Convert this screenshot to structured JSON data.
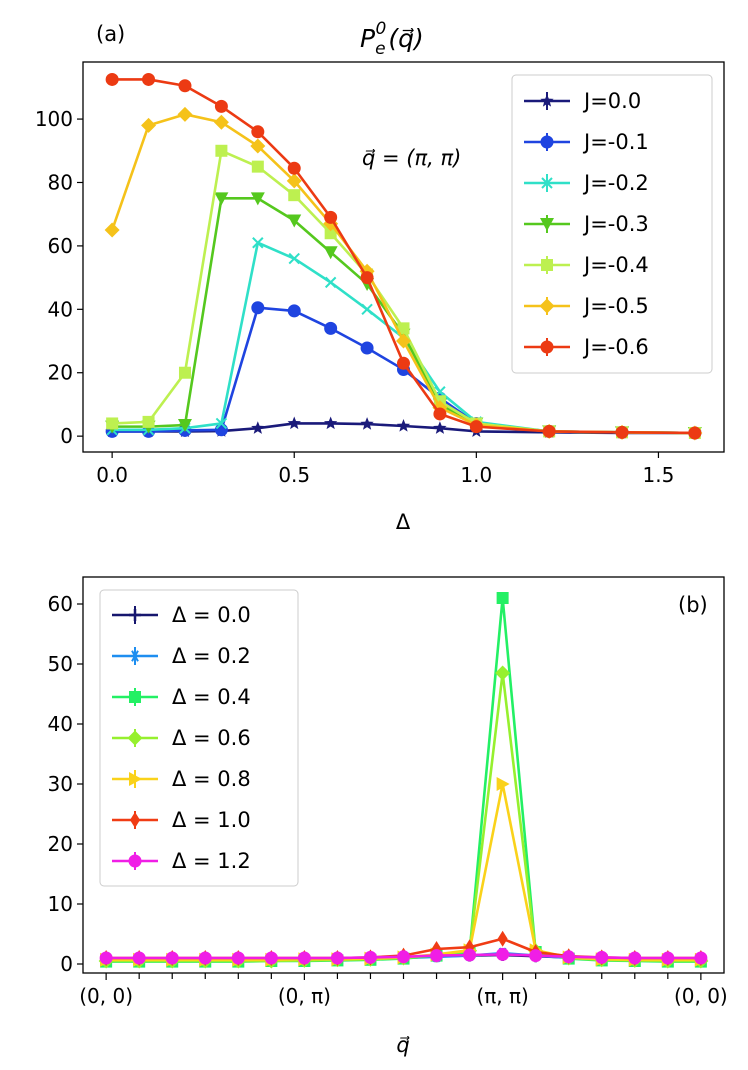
{
  "chart_data": [
    {
      "type": "line",
      "panel_label": "(a)",
      "title": "P_e^0(q)",
      "title_parts": {
        "base": "P",
        "sub": "e",
        "sup": "0",
        "arg": "(q⃗)"
      },
      "annotation": "q⃗ = (π, π)",
      "xlabel": "Δ",
      "ylabel": "",
      "xlim": [
        -0.08,
        1.68
      ],
      "ylim": [
        -5,
        118
      ],
      "xticks": [
        0.0,
        0.5,
        1.0,
        1.5
      ],
      "xtick_labels": [
        "0.0",
        "0.5",
        "1.0",
        "1.5"
      ],
      "yticks": [
        0,
        20,
        40,
        60,
        80,
        100
      ],
      "ytick_labels": [
        "0",
        "20",
        "40",
        "60",
        "80",
        "100"
      ],
      "grid": false,
      "legend_position": "top-right",
      "x": [
        0.0,
        0.1,
        0.2,
        0.3,
        0.4,
        0.5,
        0.6,
        0.7,
        0.8,
        0.9,
        1.0,
        1.2,
        1.4,
        1.6
      ],
      "series": [
        {
          "name": "J=0.0",
          "color": "#1a1a7a",
          "marker": "star",
          "values": [
            1.5,
            1.5,
            1.5,
            1.6,
            2.5,
            4.0,
            4.0,
            3.8,
            3.2,
            2.5,
            1.5,
            1.2,
            1.0,
            1.0
          ]
        },
        {
          "name": "J=-0.1",
          "color": "#1f44e0",
          "marker": "circle",
          "values": [
            1.5,
            1.5,
            1.8,
            2.0,
            40.5,
            39.5,
            34.0,
            27.8,
            21.0,
            12.0,
            4.0,
            1.5,
            1.2,
            1.0
          ]
        },
        {
          "name": "J=-0.2",
          "color": "#2fe0c8",
          "marker": "x",
          "values": [
            2.0,
            2.0,
            2.5,
            4.0,
            61.0,
            56.0,
            48.5,
            40.0,
            31.0,
            14.0,
            4.5,
            1.5,
            1.2,
            1.0
          ]
        },
        {
          "name": "J=-0.3",
          "color": "#55c81e",
          "marker": "tri_down",
          "values": [
            3.0,
            3.0,
            3.5,
            75.0,
            75.0,
            68.0,
            58.0,
            48.0,
            32.0,
            10.0,
            4.0,
            1.5,
            1.2,
            1.0
          ]
        },
        {
          "name": "J=-0.4",
          "color": "#bdf050",
          "marker": "square",
          "values": [
            4.0,
            4.5,
            20.0,
            90.0,
            85.0,
            76.0,
            64.0,
            51.0,
            34.0,
            11.0,
            4.0,
            1.5,
            1.2,
            1.0
          ]
        },
        {
          "name": "J=-0.5",
          "color": "#f5c21a",
          "marker": "diamond",
          "values": [
            65.0,
            98.0,
            101.5,
            99.0,
            91.5,
            80.5,
            67.0,
            52.0,
            30.0,
            9.0,
            3.5,
            1.5,
            1.2,
            1.0
          ]
        },
        {
          "name": "J=-0.6",
          "color": "#ec3a13",
          "marker": "circle",
          "values": [
            112.5,
            112.5,
            110.5,
            104.0,
            96.0,
            84.5,
            69.0,
            50.0,
            23.0,
            7.0,
            3.0,
            1.5,
            1.2,
            1.0
          ]
        }
      ]
    },
    {
      "type": "line",
      "panel_label": "(b)",
      "xlabel": "q⃗",
      "ylabel": "",
      "xlim": [
        -0.7,
        18.7
      ],
      "ylim": [
        -1.5,
        64.5
      ],
      "xtick_labels": [
        "(0, 0)",
        "(0, π)",
        "(π, π)",
        "(0, 0)"
      ],
      "xtick_label_indices": [
        0,
        6,
        12,
        18
      ],
      "minor_tick_count": 19,
      "yticks": [
        0,
        10,
        20,
        30,
        40,
        50,
        60
      ],
      "ytick_labels": [
        "0",
        "10",
        "20",
        "30",
        "40",
        "50",
        "60"
      ],
      "grid": false,
      "legend_position": "top-left",
      "x": [
        0,
        1,
        2,
        3,
        4,
        5,
        6,
        7,
        8,
        9,
        10,
        11,
        12,
        13,
        14,
        15,
        16,
        17,
        18
      ],
      "series": [
        {
          "name": "Δ = 0.0",
          "color": "#16166e",
          "marker": "plus",
          "values": [
            0.9,
            0.9,
            0.9,
            0.9,
            0.9,
            0.9,
            0.9,
            0.9,
            1.0,
            1.1,
            1.3,
            1.4,
            1.5,
            1.3,
            1.1,
            0.9,
            0.9,
            0.9,
            0.9
          ]
        },
        {
          "name": "Δ = 0.2",
          "color": "#1e8ef0",
          "marker": "asterisk",
          "values": [
            0.8,
            0.8,
            0.8,
            0.8,
            0.8,
            0.8,
            0.8,
            0.8,
            0.9,
            1.0,
            1.2,
            1.4,
            1.8,
            1.4,
            1.0,
            0.8,
            0.8,
            0.8,
            0.8
          ]
        },
        {
          "name": "Δ = 0.4",
          "color": "#23f064",
          "marker": "square",
          "values": [
            0.4,
            0.4,
            0.4,
            0.4,
            0.4,
            0.5,
            0.5,
            0.6,
            0.7,
            0.9,
            1.4,
            2.0,
            61.0,
            2.0,
            0.9,
            0.6,
            0.5,
            0.4,
            0.4
          ]
        },
        {
          "name": "Δ = 0.6",
          "color": "#96f02e",
          "marker": "diamond",
          "values": [
            0.5,
            0.5,
            0.5,
            0.5,
            0.5,
            0.5,
            0.6,
            0.7,
            0.8,
            1.0,
            1.5,
            2.2,
            48.5,
            2.2,
            1.0,
            0.7,
            0.6,
            0.5,
            0.5
          ]
        },
        {
          "name": "Δ = 0.8",
          "color": "#fad21a",
          "marker": "tri_right",
          "values": [
            0.7,
            0.7,
            0.7,
            0.7,
            0.7,
            0.7,
            0.8,
            0.8,
            0.9,
            1.1,
            1.6,
            2.3,
            30.0,
            2.3,
            1.1,
            0.8,
            0.7,
            0.7,
            0.7
          ]
        },
        {
          "name": "Δ = 1.0",
          "color": "#f03c14",
          "marker": "thin_diamond",
          "values": [
            1.0,
            1.0,
            1.0,
            1.0,
            1.0,
            1.0,
            1.0,
            1.0,
            1.1,
            1.4,
            2.5,
            2.8,
            4.2,
            2.0,
            1.3,
            1.1,
            1.0,
            1.0,
            1.0
          ]
        },
        {
          "name": "Δ = 1.2",
          "color": "#f01ee6",
          "marker": "circle",
          "values": [
            1.0,
            1.0,
            1.0,
            1.0,
            1.0,
            1.0,
            1.0,
            1.0,
            1.1,
            1.2,
            1.4,
            1.5,
            1.6,
            1.4,
            1.2,
            1.1,
            1.0,
            1.0,
            1.0
          ]
        }
      ]
    }
  ]
}
